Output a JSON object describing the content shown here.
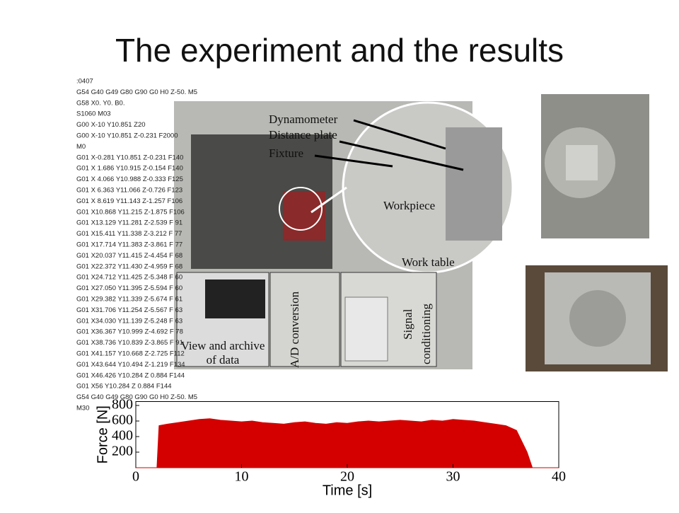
{
  "slide": {
    "title": "The experiment and the results"
  },
  "gcode": [
    ":0407",
    "G54 G40 G49 G80 G90 G0 H0 Z-50. M5",
    "G58 X0. Y0. B0.",
    "S1060 M03",
    "G00 X-10 Y10.851 Z20",
    "G00 X-10 Y10.851 Z-0.231 F2000",
    "M0",
    "G01 X-0.281 Y10.851 Z-0.231 F140",
    "G01 X 1.686 Y10.915 Z-0.154 F140",
    "G01 X 4.066 Y10.988 Z-0.333 F125",
    "G01 X 6.363 Y11.066 Z-0.726 F123",
    "G01 X 8.619 Y11.143 Z-1.257 F106",
    "G01 X10.868 Y11.215 Z-1.875 F106",
    "G01 X13.129 Y11.281 Z-2.539 F 91",
    "G01 X15.411 Y11.338 Z-3.212 F 77",
    "G01 X17.714 Y11.383 Z-3.861 F 77",
    "G01 X20.037 Y11.415 Z-4.454 F 68",
    "G01 X22.372 Y11.430 Z-4.959 F 68",
    "G01 X24.712 Y11.425 Z-5.348 F 60",
    "G01 X27.050 Y11.395 Z-5.594 F 60",
    "G01 X29.382 Y11.339 Z-5.674 F 61",
    "G01 X31.706 Y11.254 Z-5.567 F 63",
    "G01 X34.030 Y11.139 Z-5.248 F 63",
    "G01 X36.367 Y10.999 Z-4.692 F 78",
    "G01 X38.736 Y10.839 Z-3.865 F 91",
    "G01 X41.157 Y10.668 Z-2.725 F112",
    "G01 X43.644 Y10.494 Z-1.219 F134",
    "G01 X46.426 Y10.284 Z 0.884 F144",
    "G01 X56 Y10.284 Z 0.884 F144",
    "G54 G40 G49 G80 G90 G0 H0 Z-50. M5",
    "M30"
  ],
  "photo_labels": [
    "Dynamometer",
    "Distance plate",
    "Fixture",
    "Workpiece",
    "Work table",
    "View and archive",
    "of data",
    "A/D conversion",
    "Signal",
    "conditioning"
  ],
  "chart_data": {
    "type": "area",
    "x_label": "Time [s]",
    "y_label": "Force [N]",
    "color": "#d40000",
    "x": [
      0,
      1,
      2,
      2.2,
      3,
      4,
      5,
      6,
      7,
      8,
      9,
      10,
      11,
      12,
      13,
      14,
      15,
      16,
      17,
      18,
      19,
      20,
      21,
      22,
      23,
      24,
      25,
      26,
      27,
      28,
      29,
      30,
      31,
      32,
      33,
      34,
      35,
      36,
      37,
      37.5,
      38,
      39,
      40
    ],
    "values": [
      0,
      0,
      0,
      540,
      560,
      580,
      600,
      620,
      630,
      610,
      600,
      590,
      600,
      580,
      570,
      560,
      580,
      590,
      570,
      560,
      580,
      570,
      590,
      600,
      590,
      600,
      610,
      600,
      590,
      610,
      600,
      620,
      610,
      600,
      580,
      560,
      540,
      480,
      200,
      0,
      0,
      0,
      0
    ],
    "xlim": [
      0,
      40
    ],
    "xticks": [
      0,
      10,
      20,
      30,
      40
    ],
    "ylim": [
      0,
      850
    ],
    "yticks": [
      200,
      400,
      600,
      800
    ]
  }
}
